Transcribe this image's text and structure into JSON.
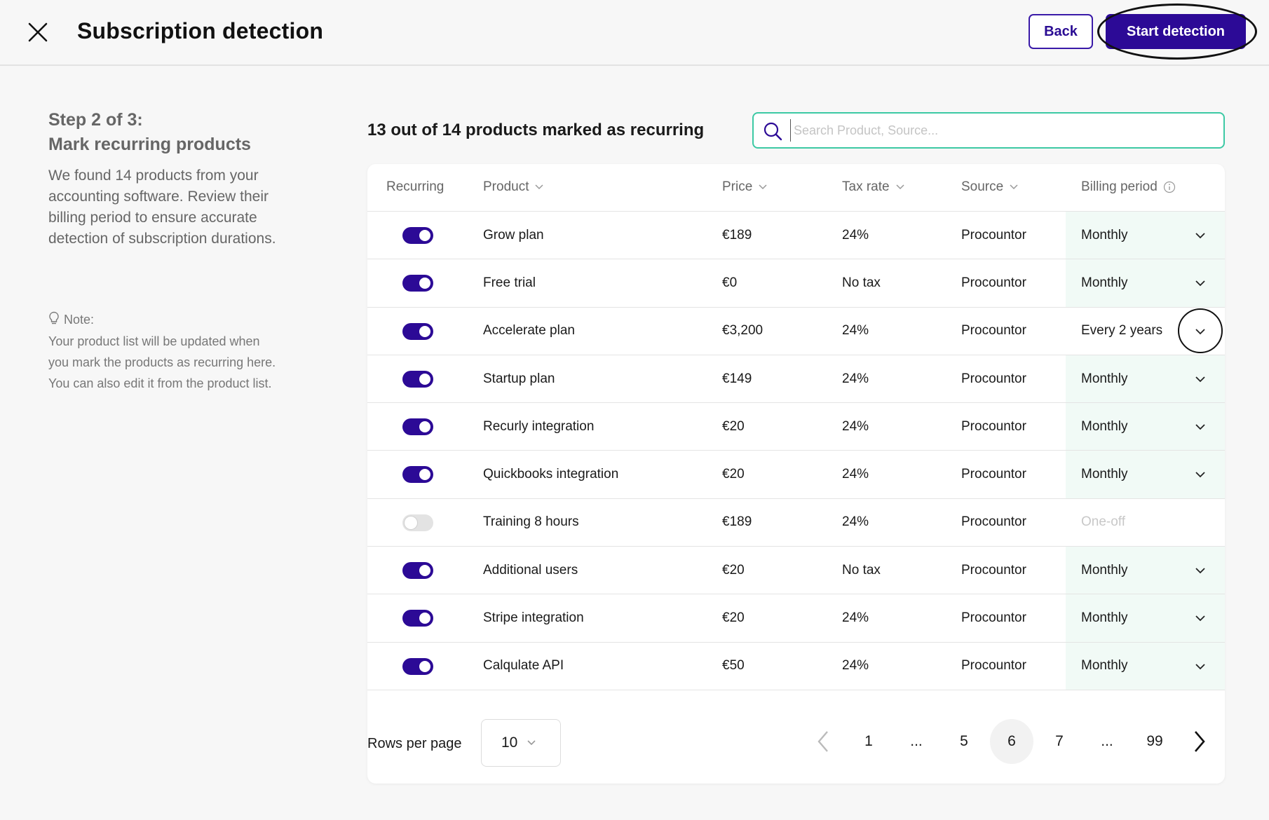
{
  "header": {
    "title": "Subscription detection",
    "back_label": "Back",
    "start_label": "Start detection"
  },
  "sidebar": {
    "step_line1": "Step 2 of 3:",
    "step_line2": "Mark recurring products",
    "description": "We found 14 products from your accounting software. Review their billing period to ensure accurate detection of subscription durations.",
    "note_label": "Note:",
    "note_text": "Your product list will be updated when you mark the products as recurring here. You can also edit it from the product list."
  },
  "summary": {
    "count_text": "13 out of 14 products marked as recurring"
  },
  "search": {
    "placeholder": "Search Product, Source...",
    "value": ""
  },
  "table": {
    "headers": {
      "recurring": "Recurring",
      "product": "Product",
      "price": "Price",
      "tax_rate": "Tax rate",
      "source": "Source",
      "billing_period": "Billing period"
    },
    "rows": [
      {
        "recurring": true,
        "product": "Grow plan",
        "price": "€189",
        "tax": "24%",
        "source": "Procountor",
        "billing": "Monthly"
      },
      {
        "recurring": true,
        "product": "Free trial",
        "price": "€0",
        "tax": "No tax",
        "source": "Procountor",
        "billing": "Monthly"
      },
      {
        "recurring": true,
        "product": "Accelerate plan",
        "price": "€3,200",
        "tax": "24%",
        "source": "Procountor",
        "billing": "Every 2 years"
      },
      {
        "recurring": true,
        "product": "Startup plan",
        "price": "€149",
        "tax": "24%",
        "source": "Procountor",
        "billing": "Monthly"
      },
      {
        "recurring": true,
        "product": "Recurly integration",
        "price": "€20",
        "tax": "24%",
        "source": "Procountor",
        "billing": "Monthly"
      },
      {
        "recurring": true,
        "product": "Quickbooks integration",
        "price": "€20",
        "tax": "24%",
        "source": "Procountor",
        "billing": "Monthly"
      },
      {
        "recurring": false,
        "product": "Training 8 hours",
        "price": "€189",
        "tax": "24%",
        "source": "Procountor",
        "billing": "One-off"
      },
      {
        "recurring": true,
        "product": "Additional users",
        "price": "€20",
        "tax": "No tax",
        "source": "Procountor",
        "billing": "Monthly"
      },
      {
        "recurring": true,
        "product": "Stripe integration",
        "price": "€20",
        "tax": "24%",
        "source": "Procountor",
        "billing": "Monthly"
      },
      {
        "recurring": true,
        "product": "Calqulate API",
        "price": "€50",
        "tax": "24%",
        "source": "Procountor",
        "billing": "Monthly"
      }
    ]
  },
  "footer": {
    "rows_per_page_label": "Rows per page",
    "rows_per_page_value": "10",
    "pages": [
      "1",
      "...",
      "5",
      "6",
      "7",
      "...",
      "99"
    ],
    "current_page": "6"
  },
  "colors": {
    "primary": "#2c0a96",
    "search_border": "#3cc9a4",
    "billing_bg": "#f1faf6"
  }
}
